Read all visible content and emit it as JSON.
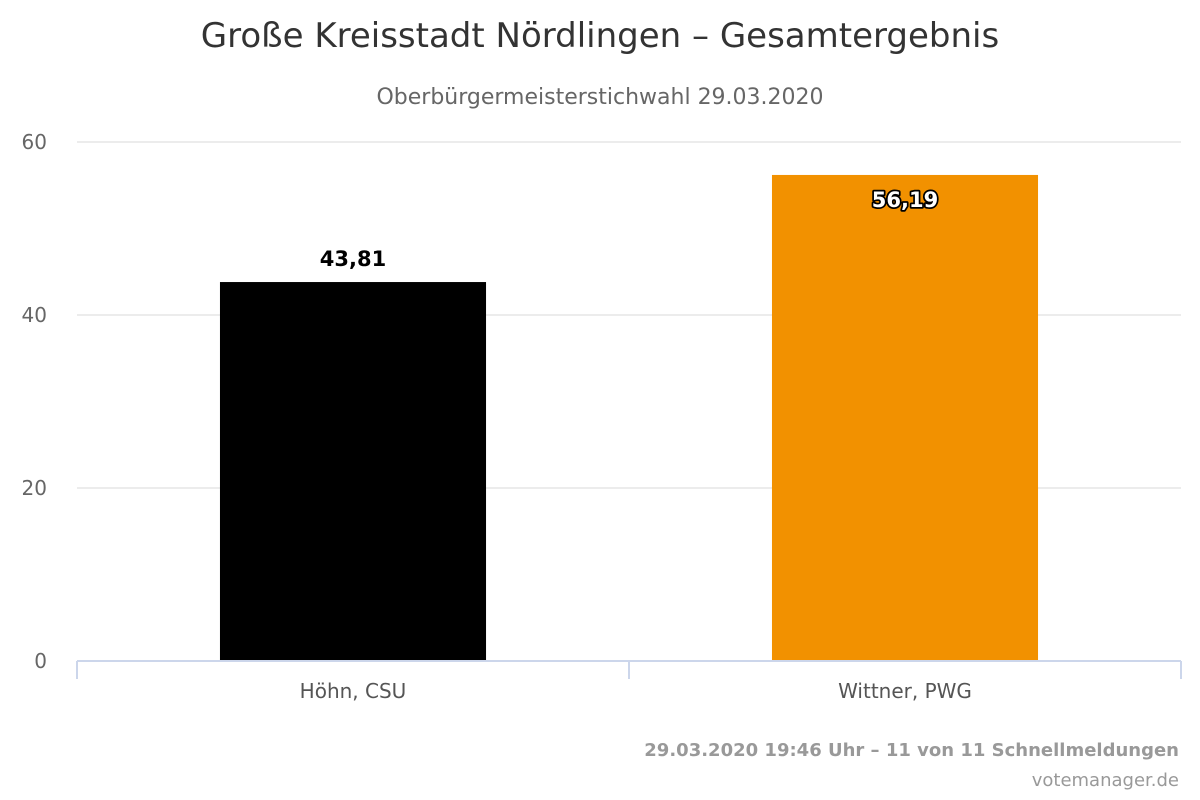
{
  "chart_data": {
    "type": "bar",
    "title": "Große Kreisstadt Nördlingen – Gesamtergebnis",
    "subtitle": "Oberbürgermeisterstichwahl 29.03.2020",
    "categories": [
      "Höhn, CSU",
      "Wittner, PWG"
    ],
    "values": [
      43.81,
      56.19
    ],
    "data_labels": [
      "43,81",
      "56,19"
    ],
    "colors": [
      "#000000",
      "#f29100"
    ],
    "ylim": [
      0,
      60
    ],
    "y_ticks": [
      0,
      20,
      40,
      60
    ],
    "y_tick_labels": [
      "0",
      "20",
      "40",
      "60"
    ],
    "grid": true,
    "xlabel": "",
    "ylabel": ""
  },
  "credits": {
    "line1": "29.03.2020 19:46 Uhr – 11 von 11 Schnellmeldungen",
    "line2": "votemanager.de"
  }
}
